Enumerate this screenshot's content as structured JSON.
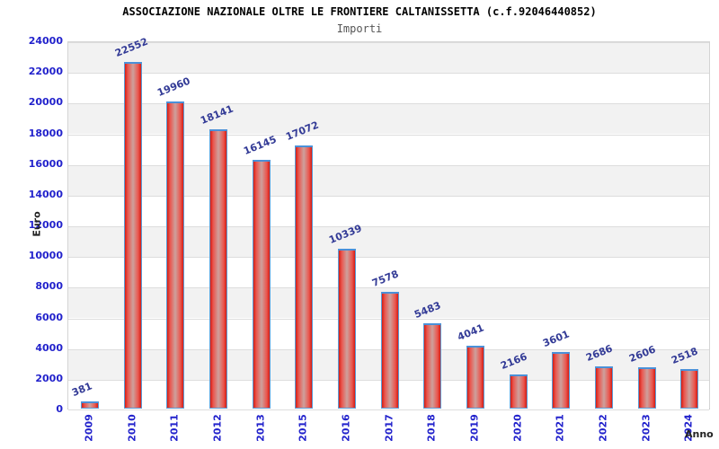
{
  "chart_data": {
    "type": "bar",
    "title": "ASSOCIAZIONE NAZIONALE OLTRE LE FRONTIERE CALTANISSETTA (c.f.92046440852)",
    "subtitle": "Importi",
    "xlabel": "Anno",
    "ylabel": "Euro",
    "categories": [
      "2009",
      "2010",
      "2011",
      "2012",
      "2013",
      "2015",
      "2016",
      "2017",
      "2018",
      "2019",
      "2020",
      "2021",
      "2022",
      "2023",
      "2024"
    ],
    "values": [
      381,
      22552,
      19960,
      18141,
      16145,
      17072,
      10339,
      7578,
      5483,
      4041,
      2166,
      3601,
      2686,
      2606,
      2518
    ],
    "ylim": [
      0,
      24000
    ],
    "ytick_step": 2000,
    "grid": true,
    "legend": "none",
    "colors": {
      "bar_edge": "#d41d14",
      "bar_mid": "#cda19d",
      "bar_border": "#5b9bd5",
      "tick_label": "#2222cc",
      "value_label": "#323a96",
      "band_gray": "#f2f2f2",
      "band_white": "#ffffff",
      "gridline": "#dddddd",
      "title_color": "#000000",
      "subtitle_color": "#555555"
    }
  }
}
